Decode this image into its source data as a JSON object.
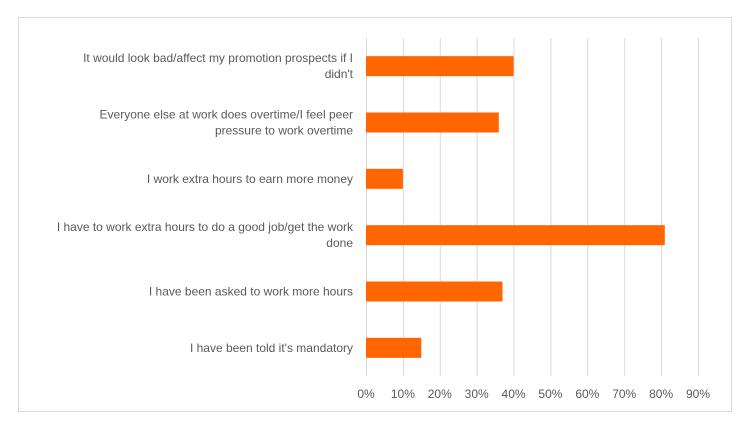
{
  "chart_data": {
    "type": "bar",
    "orientation": "horizontal",
    "categories": [
      [
        "It would look bad/affect my promotion prospects if I",
        "didn't"
      ],
      [
        "Everyone else at work does overtime/I feel peer",
        "pressure to work overtime"
      ],
      [
        "I work extra hours to earn more money"
      ],
      [
        "I have to work extra hours to do a good job/get the work",
        "done"
      ],
      [
        "I have been asked to work more hours"
      ],
      [
        "I have been told it's mandatory"
      ]
    ],
    "values": [
      40,
      36,
      10,
      81,
      37,
      15
    ],
    "xlim": [
      0,
      90
    ],
    "x_ticks": [
      0,
      10,
      20,
      30,
      40,
      50,
      60,
      70,
      80,
      90
    ],
    "tick_suffix": "%",
    "bar_color": "#ff6600",
    "grid": true,
    "legend": "none"
  }
}
